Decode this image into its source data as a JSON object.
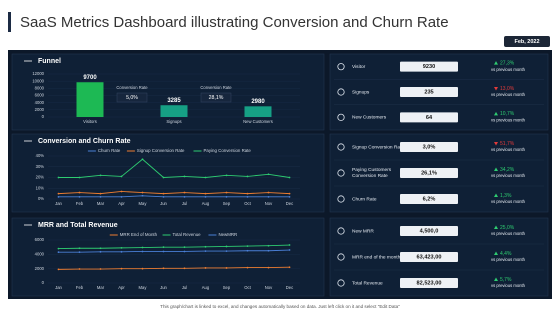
{
  "header": {
    "title": "SaaS Metrics Dashboard illustrating Conversion and Churn Rate",
    "date": "Feb, 2022"
  },
  "chart_data": [
    {
      "type": "bar",
      "title": "Funnel",
      "categories": [
        "Visitors",
        "Signups",
        "New Customers"
      ],
      "values": [
        9700,
        3285,
        2980
      ],
      "colors": [
        "#1db954",
        "#16a085",
        "#16a085"
      ],
      "ylim": [
        0,
        12000
      ],
      "yticks": [
        0,
        2000,
        4000,
        6000,
        8000,
        10000,
        12000
      ],
      "annotations": [
        {
          "label": "Conversion Rate",
          "value": "5,0%"
        },
        {
          "label": "Conversion Rate",
          "value": "28,1%"
        }
      ]
    },
    {
      "type": "line",
      "title": "Conversion and Churn Rate",
      "categories": [
        "Jan",
        "Feb",
        "Mar",
        "Apr",
        "May",
        "Jun",
        "Jul",
        "Aug",
        "Sep",
        "Oct",
        "Nov",
        "Dec"
      ],
      "series": [
        {
          "name": "Churn Rate",
          "color": "#4a7fd6",
          "values": [
            2,
            2,
            2,
            2,
            3,
            2,
            2,
            2,
            2,
            2,
            2,
            2
          ]
        },
        {
          "name": "Signup Conversion Rate",
          "color": "#ed7d31",
          "values": [
            5,
            6,
            5,
            7,
            6,
            5,
            6,
            5,
            6,
            5,
            6,
            5
          ]
        },
        {
          "name": "Paying Conversion Rate",
          "color": "#2ecc71",
          "values": [
            20,
            20,
            22,
            21,
            37,
            20,
            21,
            20,
            22,
            21,
            23,
            20
          ]
        }
      ],
      "ylim": [
        0,
        40
      ],
      "yticks": [
        {
          "value": 0,
          "label": "0%"
        },
        {
          "value": 10,
          "label": "10%"
        },
        {
          "value": 20,
          "label": "20%"
        },
        {
          "value": 30,
          "label": "30%"
        },
        {
          "value": 40,
          "label": "40%"
        }
      ]
    },
    {
      "type": "line",
      "title": "MRR and Total Revenue",
      "categories": [
        "Jan",
        "Feb",
        "Mar",
        "Apr",
        "May",
        "Jun",
        "Jul",
        "Aug",
        "Sep",
        "Oct",
        "Nov",
        "Dec"
      ],
      "series": [
        {
          "name": "MRR End of Month",
          "color": "#ed7d31",
          "values": [
            1900,
            1950,
            1950,
            2000,
            2000,
            2050,
            2050,
            2100,
            2100,
            2150,
            2150,
            2200
          ]
        },
        {
          "name": "Total Revenue",
          "color": "#2ecc71",
          "values": [
            4800,
            4850,
            4850,
            4900,
            4950,
            5000,
            5000,
            5050,
            5100,
            5150,
            5200,
            5300
          ]
        },
        {
          "name": "NewMRR",
          "color": "#4a7fd6",
          "values": [
            4300,
            4300,
            4350,
            4350,
            4400,
            4400,
            4400,
            4450,
            4450,
            4500,
            4500,
            4600
          ]
        }
      ],
      "ylim": [
        0,
        6000
      ],
      "yticks": [
        0,
        2000,
        4000,
        6000
      ]
    }
  ],
  "kpis": [
    {
      "rows": [
        {
          "label": "Visitor",
          "value": "9230",
          "change": "27,3%",
          "direction": "up",
          "note": "vs previous month"
        },
        {
          "label": "Signups",
          "value": "235",
          "change": "13,0%",
          "direction": "down",
          "note": "vs previous month"
        },
        {
          "label": "New Customers",
          "value": "64",
          "change": "10,7%",
          "direction": "up",
          "note": "vs previous month"
        }
      ]
    },
    {
      "rows": [
        {
          "label": "Signup Conversion Rate",
          "value": "3,0%",
          "change": "51,7%",
          "direction": "down",
          "note": "vs previous month"
        },
        {
          "label": "Paying Customers Conversion Rate",
          "value": "26,1%",
          "change": "34,2%",
          "direction": "up",
          "note": "vs previous month"
        },
        {
          "label": "Churn Rate",
          "value": "6,2%",
          "change": "1,3%",
          "direction": "up",
          "note": "vs previous month"
        }
      ]
    },
    {
      "rows": [
        {
          "label": "New MRR",
          "value": "4,500,0",
          "change": "25,0%",
          "direction": "up",
          "note": "vs previous month"
        },
        {
          "label": "MRR end of the month",
          "value": "63,423,00",
          "change": "4,4%",
          "direction": "up",
          "note": "vs previous month"
        },
        {
          "label": "Total Revenue",
          "value": "82,523,00",
          "change": "5,7%",
          "direction": "up",
          "note": "vs previous month"
        }
      ]
    }
  ],
  "footer": "This graph/chart is linked to excel, and changes automatically based on data. Just left click on it and select \"Edit Data\""
}
